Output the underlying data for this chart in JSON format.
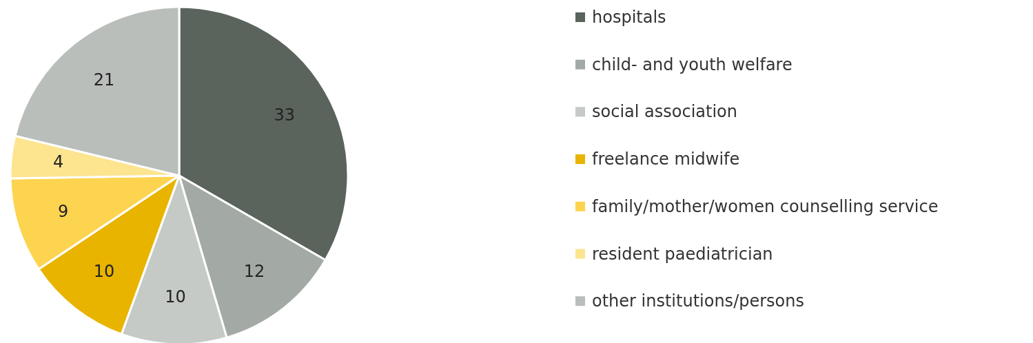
{
  "chart_data": {
    "type": "pie",
    "categories": [
      "hospitals",
      "child- and youth welfare",
      "social association",
      "freelance midwife",
      "family/mother/women counselling service",
      "resident paediatrician",
      "other institutions/persons"
    ],
    "values": [
      33,
      12,
      10,
      10,
      9,
      4,
      21
    ],
    "colors": [
      "#5a635c",
      "#a3aaa5",
      "#c5cac7",
      "#e8b400",
      "#fdd44f",
      "#fde48f",
      "#b9bebb"
    ],
    "data_labels": true,
    "legend": "right"
  }
}
